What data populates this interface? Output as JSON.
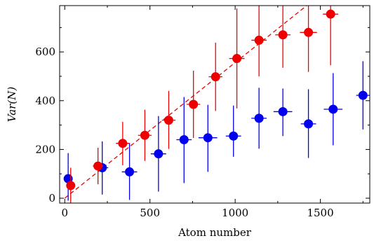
{
  "chart_data": {
    "type": "scatter",
    "xlabel": "Atom number",
    "ylabel": "Var(N)",
    "xlim": [
      -30,
      1790
    ],
    "ylim": [
      -20,
      790
    ],
    "x_ticks": [
      0,
      500,
      1000,
      1500
    ],
    "y_ticks": [
      0,
      200,
      400,
      600
    ],
    "grid": false,
    "series": [
      {
        "color": "#0000ee",
        "points": [
          {
            "x": 20,
            "y": 80,
            "xerr": 15,
            "yerr_low": 90,
            "yerr_high": 105
          },
          {
            "x": 220,
            "y": 125,
            "xerr": 35,
            "yerr_low": 110,
            "yerr_high": 108
          },
          {
            "x": 380,
            "y": 108,
            "xerr": 45,
            "yerr_low": 115,
            "yerr_high": 118
          },
          {
            "x": 550,
            "y": 182,
            "xerr": 45,
            "yerr_low": 155,
            "yerr_high": 155
          },
          {
            "x": 700,
            "y": 240,
            "xerr": 45,
            "yerr_low": 178,
            "yerr_high": 175
          },
          {
            "x": 840,
            "y": 248,
            "xerr": 55,
            "yerr_low": 140,
            "yerr_high": 135
          },
          {
            "x": 990,
            "y": 255,
            "xerr": 45,
            "yerr_low": 85,
            "yerr_high": 125
          },
          {
            "x": 1140,
            "y": 328,
            "xerr": 45,
            "yerr_low": 125,
            "yerr_high": 125
          },
          {
            "x": 1280,
            "y": 355,
            "xerr": 55,
            "yerr_low": 100,
            "yerr_high": 95
          },
          {
            "x": 1430,
            "y": 305,
            "xerr": 45,
            "yerr_low": 140,
            "yerr_high": 142
          },
          {
            "x": 1575,
            "y": 365,
            "xerr": 55,
            "yerr_low": 148,
            "yerr_high": 148
          },
          {
            "x": 1750,
            "y": 422,
            "xerr": 40,
            "yerr_low": 140,
            "yerr_high": 140
          }
        ]
      },
      {
        "color": "#ee0000",
        "points": [
          {
            "x": 35,
            "y": 52,
            "xerr": 10,
            "yerr_low": 72,
            "yerr_high": 73
          },
          {
            "x": 195,
            "y": 132,
            "xerr": 30,
            "yerr_low": 75,
            "yerr_high": 75
          },
          {
            "x": 340,
            "y": 225,
            "xerr": 40,
            "yerr_low": 90,
            "yerr_high": 88
          },
          {
            "x": 470,
            "y": 258,
            "xerr": 40,
            "yerr_low": 105,
            "yerr_high": 105
          },
          {
            "x": 610,
            "y": 320,
            "xerr": 40,
            "yerr_low": 118,
            "yerr_high": 120
          },
          {
            "x": 755,
            "y": 385,
            "xerr": 40,
            "yerr_low": 138,
            "yerr_high": 138
          },
          {
            "x": 885,
            "y": 498,
            "xerr": 40,
            "yerr_low": 140,
            "yerr_high": 140
          },
          {
            "x": 1010,
            "y": 573,
            "xerr": 45,
            "yerr_low": 205,
            "yerr_high": 205
          },
          {
            "x": 1140,
            "y": 648,
            "xerr": 45,
            "yerr_low": 148,
            "yerr_high": 150
          },
          {
            "x": 1280,
            "y": 670,
            "xerr": 45,
            "yerr_low": 135,
            "yerr_high": 135
          },
          {
            "x": 1430,
            "y": 680,
            "xerr": 50,
            "yerr_low": 162,
            "yerr_high": 160
          },
          {
            "x": 1560,
            "y": 755,
            "xerr": 45,
            "yerr_low": 210,
            "yerr_high": 210
          }
        ]
      }
    ],
    "reference_line": {
      "style": "dashed",
      "color": "#ee0000",
      "points": [
        [
          0,
          0
        ],
        [
          1420,
          790
        ]
      ]
    }
  }
}
